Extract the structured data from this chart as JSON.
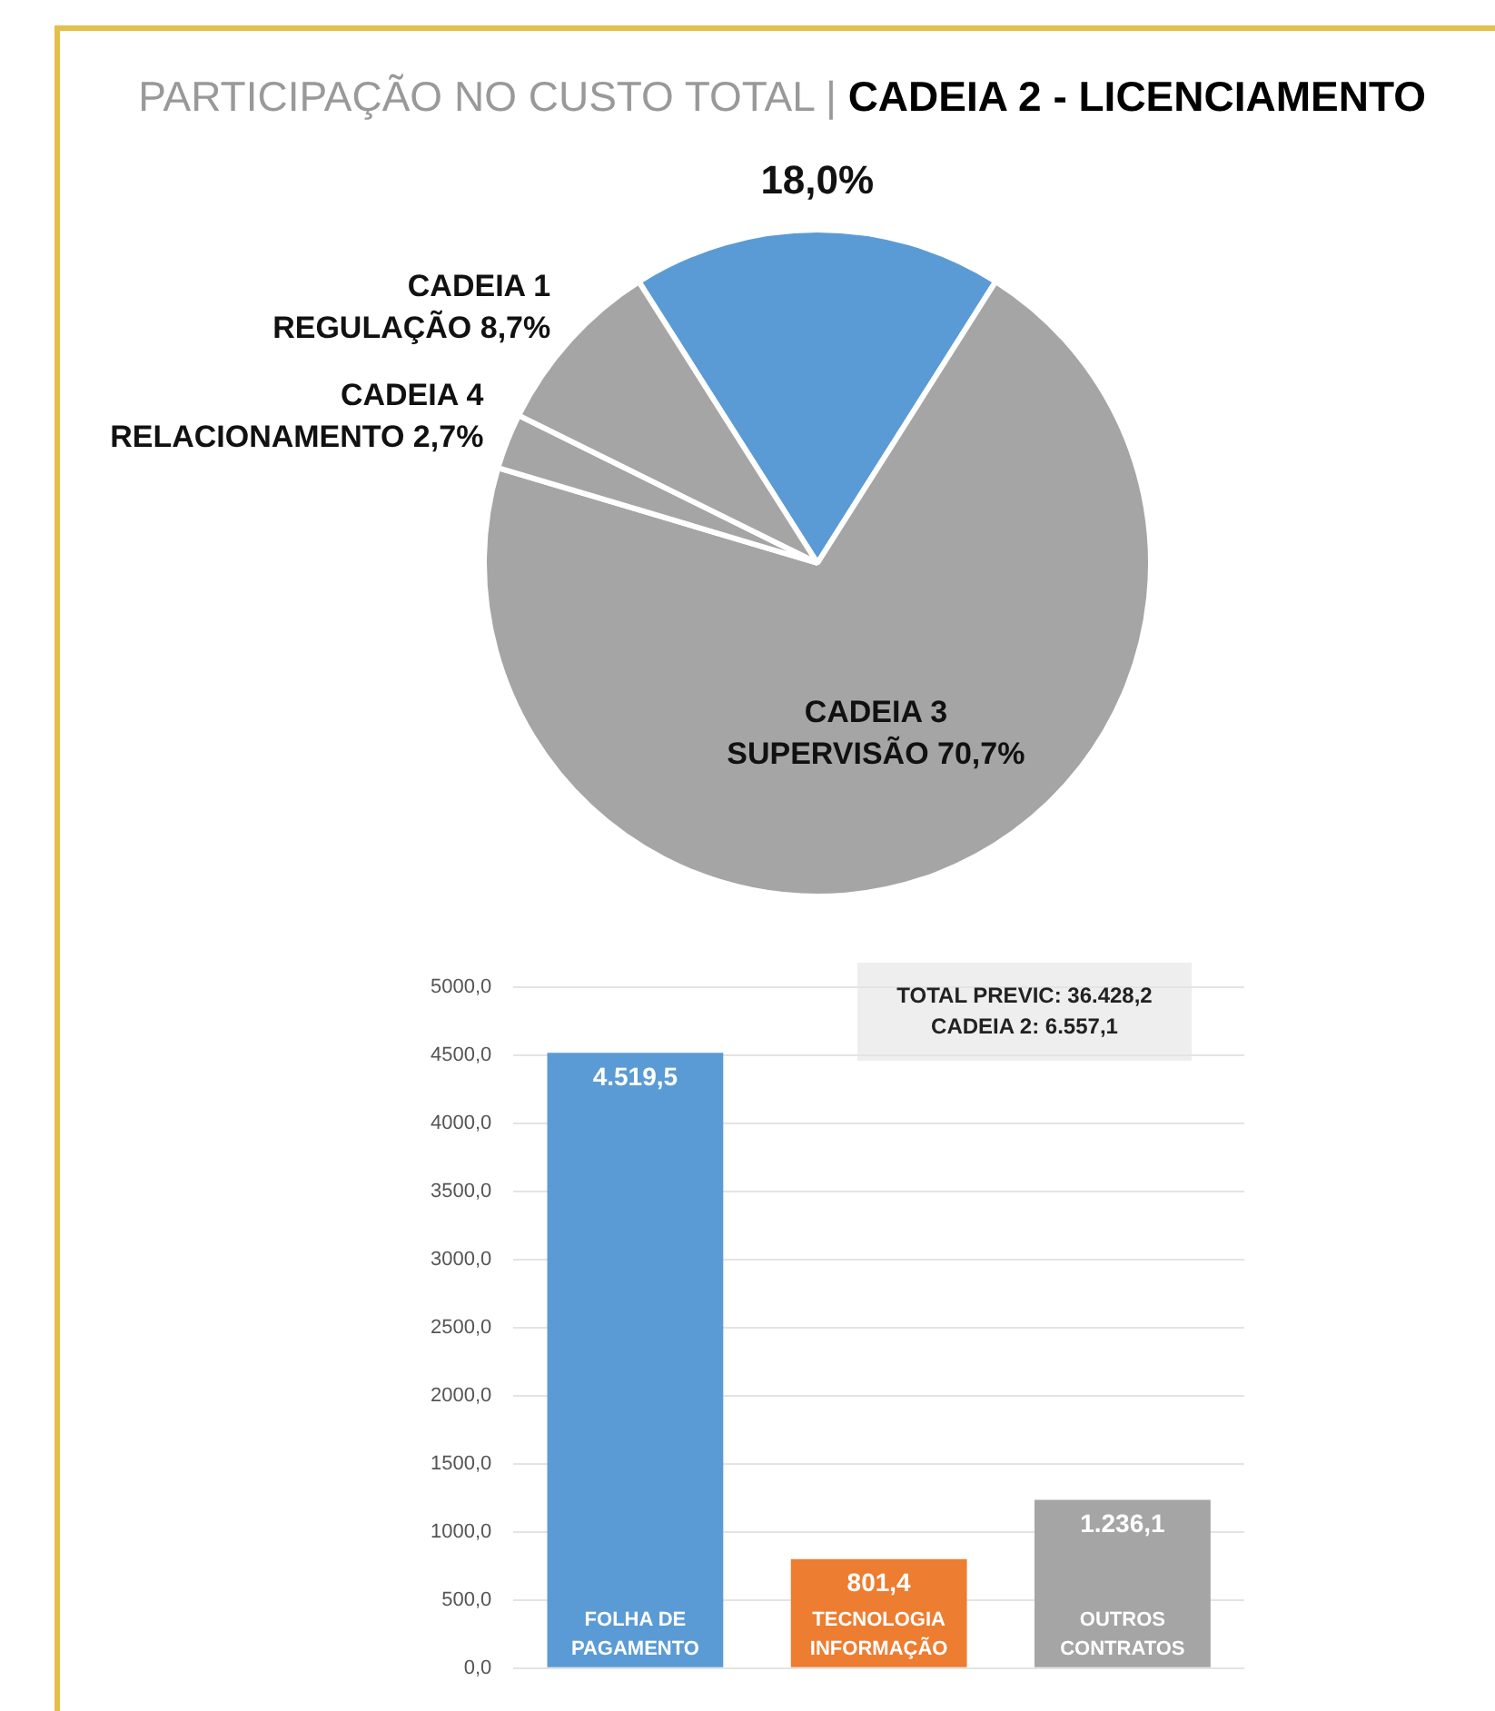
{
  "chart_data": [
    {
      "type": "pie",
      "title": "PARTICIPAÇÃO NO CUSTO TOTAL |",
      "subtitle": "CADEIA 2 - LICENCIAMENTO",
      "categories": [
        null,
        "CADEIA 3 SUPERVISÃO",
        "CADEIA 4 RELACIONAMENTO",
        "CADEIA 1 REGULAÇÃO"
      ],
      "values": [
        18.0,
        70.7,
        2.7,
        8.7
      ],
      "value_labels": [
        "18,0%",
        "70,7%",
        "2,7%",
        "8,7%"
      ],
      "colors": [
        "#5b9bd5",
        "#a5a5a5",
        "#a5a5a5",
        "#a5a5a5"
      ],
      "legend": false
    },
    {
      "type": "bar",
      "categories": [
        "FOLHA DE PAGAMENTO",
        "TECNOLOGIA INFORMAÇÃO",
        "OUTROS CONTRATOS"
      ],
      "values": [
        4519.5,
        801.4,
        1236.1
      ],
      "value_labels": [
        "4.519,5",
        "801,4",
        "1.236,1"
      ],
      "colors": [
        "#5b9bd5",
        "#ed7d31",
        "#a5a5a5"
      ],
      "ylim": [
        0,
        5000
      ],
      "yticks": [
        {
          "value": 0,
          "label": "0,0"
        },
        {
          "value": 500,
          "label": "500,0"
        },
        {
          "value": 1000,
          "label": "1000,0"
        },
        {
          "value": 1500,
          "label": "1500,0"
        },
        {
          "value": 2000,
          "label": "2000,0"
        },
        {
          "value": 2500,
          "label": "2500,0"
        },
        {
          "value": 3000,
          "label": "3000,0"
        },
        {
          "value": 3500,
          "label": "3500,0"
        },
        {
          "value": 4000,
          "label": "4000,0"
        },
        {
          "value": 4500,
          "label": "4500,0"
        },
        {
          "value": 5000,
          "label": "5000,0"
        }
      ],
      "grid": "y",
      "legend": false,
      "tick_labels": "y",
      "annotations": [
        "TOTAL PREVIC: 36.428,2",
        "CADEIA 2: 6.557,1"
      ]
    }
  ]
}
